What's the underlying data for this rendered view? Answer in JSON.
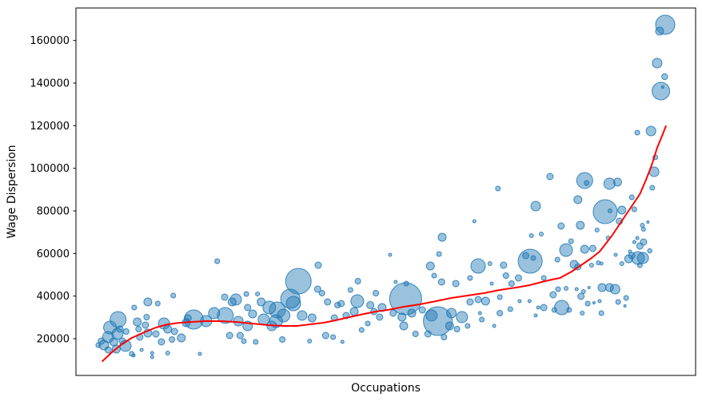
{
  "chart_data": {
    "type": "scatter",
    "title": "",
    "xlabel": "Occupations",
    "ylabel": "Wage Dispersion",
    "legend": null,
    "grid": false,
    "x_axis": {
      "ticks": [],
      "note_visible_text_only": "no x tick labels shown"
    },
    "y_axis": {
      "range": [
        2750,
        175250
      ],
      "ticks": [
        20000,
        40000,
        60000,
        80000,
        100000,
        120000,
        140000,
        160000
      ],
      "tick_labels": [
        "20000",
        "40000",
        "60000",
        "80000",
        "100000",
        "120000",
        "140000",
        "160000"
      ]
    },
    "bubble_color": "#1f77b4",
    "bubble_alpha": 0.45,
    "bubble_edge_alpha": 0.85,
    "trend_color": "#ff0000",
    "spine_color": "#000000",
    "bubbles_format": "[x_fraction_of_plot_width, wage_dispersion_value, radius_px]",
    "bubbles": [
      [
        0.036,
        17000,
        3
      ],
      [
        0.041,
        18875,
        4
      ],
      [
        0.045,
        17000,
        6
      ],
      [
        0.052,
        20750,
        7
      ],
      [
        0.055,
        25250,
        8
      ],
      [
        0.068,
        29000,
        10
      ],
      [
        0.067,
        22250,
        7
      ],
      [
        0.061,
        18500,
        5
      ],
      [
        0.065,
        15125,
        5
      ],
      [
        0.052,
        14750,
        4
      ],
      [
        0.075,
        18875,
        4
      ],
      [
        0.08,
        16625,
        7
      ],
      [
        0.071,
        24500,
        4
      ],
      [
        0.081,
        23375,
        3.5
      ],
      [
        0.09,
        12875,
        3
      ],
      [
        0.093,
        12125,
        2
      ],
      [
        0.094,
        34625,
        3
      ],
      [
        0.099,
        27875,
        5
      ],
      [
        0.101,
        24500,
        3.5
      ],
      [
        0.103,
        20750,
        4
      ],
      [
        0.106,
        14750,
        2
      ],
      [
        0.112,
        26375,
        4
      ],
      [
        0.114,
        30125,
        3.5
      ],
      [
        0.116,
        22625,
        5
      ],
      [
        0.116,
        37250,
        5
      ],
      [
        0.123,
        13250,
        2
      ],
      [
        0.123,
        11375,
        2
      ],
      [
        0.129,
        22250,
        4
      ],
      [
        0.132,
        36500,
        3
      ],
      [
        0.138,
        18500,
        4
      ],
      [
        0.142,
        27125,
        7
      ],
      [
        0.148,
        24500,
        5
      ],
      [
        0.148,
        13250,
        2.5
      ],
      [
        0.155,
        19625,
        3.5
      ],
      [
        0.157,
        40250,
        3
      ],
      [
        0.159,
        23375,
        4
      ],
      [
        0.17,
        20375,
        5
      ],
      [
        0.178,
        27500,
        5
      ],
      [
        0.181,
        29750,
        4
      ],
      [
        0.19,
        29000,
        12
      ],
      [
        0.2,
        12875,
        2
      ],
      [
        0.21,
        28250,
        7
      ],
      [
        0.223,
        32000,
        7
      ],
      [
        0.228,
        56375,
        3
      ],
      [
        0.24,
        39500,
        4
      ],
      [
        0.241,
        30875,
        10
      ],
      [
        0.248,
        21500,
        4
      ],
      [
        0.252,
        37250,
        5
      ],
      [
        0.258,
        38375,
        7
      ],
      [
        0.262,
        28250,
        6
      ],
      [
        0.265,
        21500,
        4
      ],
      [
        0.271,
        18875,
        3
      ],
      [
        0.275,
        41000,
        3
      ],
      [
        0.277,
        34625,
        4
      ],
      [
        0.277,
        26000,
        6
      ],
      [
        0.285,
        31625,
        5
      ],
      [
        0.29,
        18500,
        3
      ],
      [
        0.293,
        41000,
        2.5
      ],
      [
        0.299,
        37250,
        5
      ],
      [
        0.303,
        29000,
        7
      ],
      [
        0.312,
        34625,
        8
      ],
      [
        0.316,
        26000,
        6
      ],
      [
        0.323,
        28250,
        8
      ],
      [
        0.325,
        33500,
        10
      ],
      [
        0.333,
        19625,
        3.5
      ],
      [
        0.335,
        30875,
        8
      ],
      [
        0.346,
        38750,
        12
      ],
      [
        0.351,
        36500,
        9
      ],
      [
        0.359,
        47000,
        16
      ],
      [
        0.365,
        30875,
        6
      ],
      [
        0.377,
        18875,
        2.5
      ],
      [
        0.381,
        29750,
        5
      ],
      [
        0.39,
        43250,
        4
      ],
      [
        0.391,
        54500,
        4
      ],
      [
        0.397,
        41375,
        3.5
      ],
      [
        0.403,
        21500,
        4
      ],
      [
        0.406,
        37250,
        4
      ],
      [
        0.415,
        20750,
        3
      ],
      [
        0.417,
        29750,
        4
      ],
      [
        0.422,
        35750,
        3.5
      ],
      [
        0.428,
        36500,
        4
      ],
      [
        0.43,
        18500,
        2
      ],
      [
        0.436,
        30875,
        4
      ],
      [
        0.443,
        42875,
        3
      ],
      [
        0.449,
        32750,
        5
      ],
      [
        0.454,
        37625,
        8
      ],
      [
        0.455,
        47000,
        3.5
      ],
      [
        0.461,
        24125,
        3
      ],
      [
        0.471,
        27125,
        3
      ],
      [
        0.475,
        35750,
        4.5
      ],
      [
        0.481,
        32750,
        4
      ],
      [
        0.484,
        41375,
        3.5
      ],
      [
        0.49,
        30125,
        4
      ],
      [
        0.494,
        34625,
        5
      ],
      [
        0.507,
        59375,
        2
      ],
      [
        0.512,
        32000,
        4
      ],
      [
        0.516,
        46625,
        2
      ],
      [
        0.526,
        30125,
        5
      ],
      [
        0.529,
        26000,
        5
      ],
      [
        0.532,
        38750,
        20
      ],
      [
        0.533,
        45875,
        3
      ],
      [
        0.542,
        32000,
        5
      ],
      [
        0.548,
        22250,
        3.5
      ],
      [
        0.559,
        33500,
        4
      ],
      [
        0.568,
        22250,
        4
      ],
      [
        0.572,
        54125,
        5
      ],
      [
        0.574,
        30875,
        7
      ],
      [
        0.578,
        49625,
        3
      ],
      [
        0.584,
        28250,
        18
      ],
      [
        0.586,
        59750,
        3
      ],
      [
        0.59,
        46625,
        4
      ],
      [
        0.591,
        67625,
        5
      ],
      [
        0.594,
        20750,
        3.5
      ],
      [
        0.603,
        26000,
        5
      ],
      [
        0.606,
        32000,
        6
      ],
      [
        0.613,
        45875,
        4
      ],
      [
        0.615,
        24500,
        3.5
      ],
      [
        0.623,
        30125,
        7
      ],
      [
        0.632,
        26000,
        3
      ],
      [
        0.636,
        48500,
        3
      ],
      [
        0.636,
        37250,
        4
      ],
      [
        0.643,
        75125,
        2
      ],
      [
        0.649,
        54125,
        9
      ],
      [
        0.649,
        38375,
        4
      ],
      [
        0.652,
        32000,
        2
      ],
      [
        0.655,
        29000,
        3
      ],
      [
        0.661,
        37625,
        5
      ],
      [
        0.668,
        55250,
        2.5
      ],
      [
        0.671,
        45875,
        2
      ],
      [
        0.675,
        26000,
        2
      ],
      [
        0.681,
        90500,
        3
      ],
      [
        0.684,
        39500,
        3
      ],
      [
        0.684,
        32000,
        3.5
      ],
      [
        0.69,
        54500,
        4
      ],
      [
        0.694,
        49625,
        3.5
      ],
      [
        0.701,
        33875,
        3
      ],
      [
        0.703,
        45875,
        3.5
      ],
      [
        0.714,
        48500,
        4
      ],
      [
        0.716,
        37625,
        2
      ],
      [
        0.726,
        59000,
        4
      ],
      [
        0.732,
        37625,
        2
      ],
      [
        0.733,
        56375,
        15
      ],
      [
        0.735,
        68375,
        2.5
      ],
      [
        0.738,
        57875,
        3
      ],
      [
        0.742,
        82250,
        6
      ],
      [
        0.742,
        30875,
        2
      ],
      [
        0.746,
        34625,
        2
      ],
      [
        0.751,
        69125,
        2.5
      ],
      [
        0.755,
        48500,
        3
      ],
      [
        0.755,
        34625,
        4
      ],
      [
        0.765,
        96125,
        4
      ],
      [
        0.77,
        40625,
        4
      ],
      [
        0.772,
        33500,
        3
      ],
      [
        0.777,
        57125,
        3
      ],
      [
        0.778,
        43250,
        3
      ],
      [
        0.783,
        72875,
        4
      ],
      [
        0.784,
        34625,
        9
      ],
      [
        0.791,
        61625,
        8
      ],
      [
        0.791,
        43625,
        2.5
      ],
      [
        0.796,
        33500,
        3
      ],
      [
        0.799,
        65750,
        3
      ],
      [
        0.804,
        54875,
        5
      ],
      [
        0.808,
        43250,
        2
      ],
      [
        0.81,
        85250,
        5
      ],
      [
        0.81,
        53750,
        4
      ],
      [
        0.814,
        73250,
        5
      ],
      [
        0.815,
        39875,
        4
      ],
      [
        0.817,
        32000,
        2.5
      ],
      [
        0.819,
        42125,
        2.5
      ],
      [
        0.821,
        94250,
        10
      ],
      [
        0.824,
        93125,
        3
      ],
      [
        0.821,
        62000,
        5
      ],
      [
        0.826,
        36500,
        3
      ],
      [
        0.828,
        44000,
        1.5
      ],
      [
        0.832,
        54500,
        2.5
      ],
      [
        0.834,
        62375,
        4
      ],
      [
        0.836,
        36875,
        1.5
      ],
      [
        0.841,
        71000,
        2.5
      ],
      [
        0.843,
        55625,
        2.5
      ],
      [
        0.845,
        37625,
        2
      ],
      [
        0.848,
        55250,
        2
      ],
      [
        0.848,
        32000,
        3
      ],
      [
        0.849,
        44000,
        5
      ],
      [
        0.854,
        79625,
        15
      ],
      [
        0.861,
        44000,
        5
      ],
      [
        0.862,
        80000,
        2.5
      ],
      [
        0.859,
        67250,
        2.5
      ],
      [
        0.861,
        92750,
        7
      ],
      [
        0.87,
        43250,
        6
      ],
      [
        0.871,
        59375,
        2
      ],
      [
        0.874,
        93500,
        5
      ],
      [
        0.875,
        37250,
        3
      ],
      [
        0.877,
        75125,
        4
      ],
      [
        0.881,
        80375,
        5
      ],
      [
        0.881,
        55250,
        2.5
      ],
      [
        0.886,
        35375,
        1.5
      ],
      [
        0.888,
        39125,
        3
      ],
      [
        0.892,
        57500,
        5
      ],
      [
        0.894,
        60875,
        2
      ],
      [
        0.897,
        86375,
        3
      ],
      [
        0.897,
        59000,
        4
      ],
      [
        0.901,
        80750,
        3
      ],
      [
        0.901,
        65375,
        2
      ],
      [
        0.906,
        116750,
        3
      ],
      [
        0.906,
        67250,
        2
      ],
      [
        0.907,
        57875,
        8
      ],
      [
        0.91,
        63500,
        4
      ],
      [
        0.91,
        54500,
        3
      ],
      [
        0.914,
        73250,
        2.5
      ],
      [
        0.915,
        57875,
        7
      ],
      [
        0.916,
        71375,
        2.5
      ],
      [
        0.916,
        65375,
        4
      ],
      [
        0.923,
        74750,
        1.5
      ],
      [
        0.926,
        61250,
        2.7
      ],
      [
        0.928,
        117500,
        6
      ],
      [
        0.93,
        90875,
        3
      ],
      [
        0.933,
        98375,
        6
      ],
      [
        0.935,
        105125,
        3
      ],
      [
        0.938,
        149375,
        6
      ],
      [
        0.942,
        164375,
        5
      ],
      [
        0.944,
        136250,
        11
      ],
      [
        0.947,
        138125,
        1.5
      ],
      [
        0.95,
        143000,
        3.7
      ],
      [
        0.951,
        167375,
        12
      ]
    ],
    "trend_line_format": "[x_fraction_of_plot_width, wage_dispersion_value]",
    "trend_line": [
      [
        0.043,
        9500
      ],
      [
        0.058,
        13625
      ],
      [
        0.074,
        17375
      ],
      [
        0.09,
        20375
      ],
      [
        0.11,
        23000
      ],
      [
        0.129,
        25250
      ],
      [
        0.148,
        26750
      ],
      [
        0.168,
        27500
      ],
      [
        0.187,
        27875
      ],
      [
        0.209,
        28250
      ],
      [
        0.232,
        28250
      ],
      [
        0.258,
        27875
      ],
      [
        0.284,
        27125
      ],
      [
        0.31,
        26375
      ],
      [
        0.335,
        26000
      ],
      [
        0.357,
        26000
      ],
      [
        0.378,
        26750
      ],
      [
        0.4,
        27500
      ],
      [
        0.419,
        28625
      ],
      [
        0.441,
        30125
      ],
      [
        0.465,
        31625
      ],
      [
        0.484,
        32750
      ],
      [
        0.503,
        33500
      ],
      [
        0.529,
        35000
      ],
      [
        0.555,
        36125
      ],
      [
        0.581,
        37625
      ],
      [
        0.606,
        39125
      ],
      [
        0.632,
        40250
      ],
      [
        0.658,
        41375
      ],
      [
        0.684,
        42875
      ],
      [
        0.71,
        44000
      ],
      [
        0.732,
        45125
      ],
      [
        0.752,
        46625
      ],
      [
        0.768,
        47750
      ],
      [
        0.781,
        48500
      ],
      [
        0.8,
        51500
      ],
      [
        0.819,
        55250
      ],
      [
        0.832,
        57875
      ],
      [
        0.845,
        60875
      ],
      [
        0.865,
        68375
      ],
      [
        0.884,
        76625
      ],
      [
        0.897,
        82250
      ],
      [
        0.91,
        87875
      ],
      [
        0.92,
        94625
      ],
      [
        0.929,
        101375
      ],
      [
        0.938,
        109625
      ],
      [
        0.946,
        115250
      ],
      [
        0.952,
        119750
      ]
    ]
  }
}
